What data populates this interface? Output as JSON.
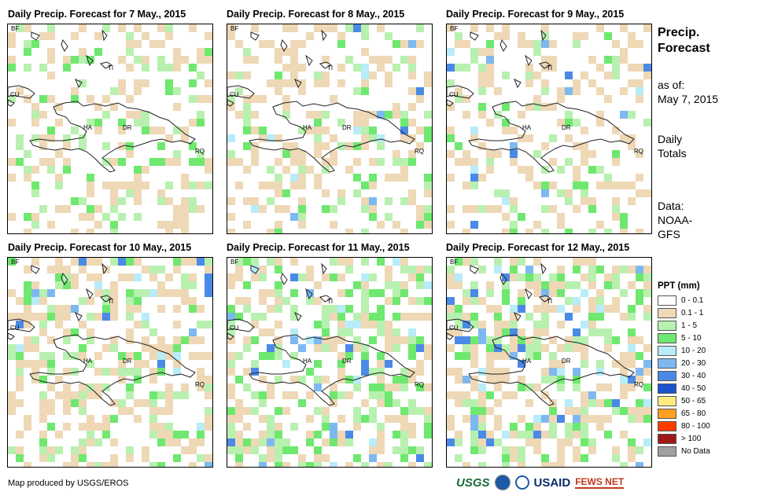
{
  "panels": [
    {
      "title": "Daily Precip. Forecast for 7 May., 2015",
      "seed": 7,
      "green_bias": 0.12,
      "blue": 0,
      "tan_bias": 0.18
    },
    {
      "title": "Daily Precip. Forecast for 8 May., 2015",
      "seed": 8,
      "green_bias": 0.12,
      "blue": 0.02,
      "tan_bias": 0.26
    },
    {
      "title": "Daily Precip. Forecast for 9 May., 2015",
      "seed": 9,
      "green_bias": 0.1,
      "blue": 0.02,
      "tan_bias": 0.22
    },
    {
      "title": "Daily Precip. Forecast for 10 May., 2015",
      "seed": 10,
      "green_bias": 0.18,
      "blue": 0.04,
      "tan_bias": 0.28
    },
    {
      "title": "Daily Precip. Forecast for 11 May., 2015",
      "seed": 11,
      "green_bias": 0.26,
      "blue": 0.05,
      "tan_bias": 0.2
    },
    {
      "title": "Daily Precip. Forecast for 12 May., 2015",
      "seed": 12,
      "green_bias": 0.2,
      "blue": 0.08,
      "tan_bias": 0.26
    }
  ],
  "map_labels": {
    "bf": "BF",
    "cu": "CU",
    "ti": "TI",
    "ha": "HA",
    "dr": "DR",
    "rq": "RQ"
  },
  "side": {
    "title": "Precip. Forecast",
    "asof_label": "as of:",
    "asof_date": "May 7, 2015",
    "daily": "Daily",
    "totals": "Totals",
    "data_label": "Data:",
    "data_source_1": "NOAA-",
    "data_source_2": "GFS"
  },
  "legend": {
    "title": "PPT (mm)",
    "items": [
      {
        "label": "0 - 0.1",
        "color": "#ffffff"
      },
      {
        "label": "0.1 - 1",
        "color": "#eed8b6"
      },
      {
        "label": "1 - 5",
        "color": "#b8f0b0"
      },
      {
        "label": "5 - 10",
        "color": "#6ee86e"
      },
      {
        "label": "10 - 20",
        "color": "#b8ecf8"
      },
      {
        "label": "20 - 30",
        "color": "#7eb8f0"
      },
      {
        "label": "30 - 40",
        "color": "#4a8ae6"
      },
      {
        "label": "40 - 50",
        "color": "#1c52d0"
      },
      {
        "label": "50 - 65",
        "color": "#ffec80"
      },
      {
        "label": "65 - 80",
        "color": "#ffa020"
      },
      {
        "label": "80 - 100",
        "color": "#ff3c00"
      },
      {
        "label": "> 100",
        "color": "#a01818"
      },
      {
        "label": "No Data",
        "color": "#a0a0a0"
      }
    ]
  },
  "credit": "Map produced by USGS/EROS",
  "logos": {
    "usgs": "USGS",
    "usaid": "USAID",
    "fews": "FEWS NET"
  }
}
